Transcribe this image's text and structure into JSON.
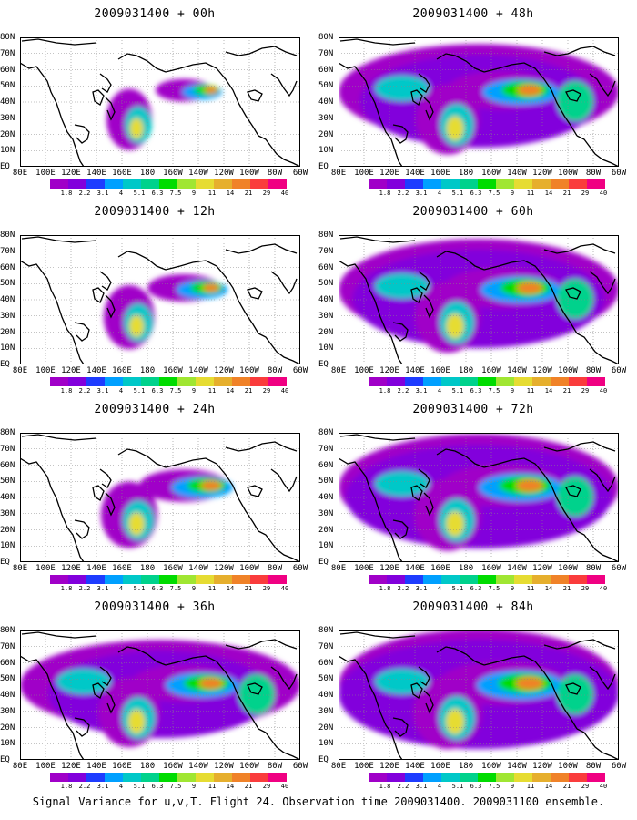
{
  "panels": [
    {
      "title": "2009031400 + 00h",
      "level": 0.35
    },
    {
      "title": "2009031400 + 12h",
      "level": 0.5
    },
    {
      "title": "2009031400 + 24h",
      "level": 0.65
    },
    {
      "title": "2009031400 + 36h",
      "level": 0.8
    },
    {
      "title": "2009031400 + 48h",
      "level": 0.85
    },
    {
      "title": "2009031400 + 60h",
      "level": 0.9
    },
    {
      "title": "2009031400 + 72h",
      "level": 0.95
    },
    {
      "title": "2009031400 + 84h",
      "level": 1.0
    }
  ],
  "lat_labels": [
    "80N",
    "70N",
    "60N",
    "50N",
    "40N",
    "30N",
    "20N",
    "10N",
    "EQ"
  ],
  "lon_labels": [
    "80E",
    "100E",
    "120E",
    "140E",
    "160E",
    "180",
    "160W",
    "140W",
    "120W",
    "100W",
    "80W",
    "60W"
  ],
  "colorbar": {
    "labels": [
      "1.8",
      "2.2",
      "3.1",
      "4",
      "5.1",
      "6.3",
      "7.5",
      "9",
      "11",
      "14",
      "21",
      "29",
      "40"
    ],
    "colors": [
      "#a000c8",
      "#8200dc",
      "#1e3cff",
      "#00a0ff",
      "#00c8c8",
      "#00d28c",
      "#00dc00",
      "#a0e632",
      "#e6dc32",
      "#e6af2d",
      "#f08228",
      "#fa3c3c",
      "#f00082"
    ]
  },
  "caption": "Signal Variance for u,v,T. Flight 24. Observation time 2009031400. 2009031100 ensemble."
}
